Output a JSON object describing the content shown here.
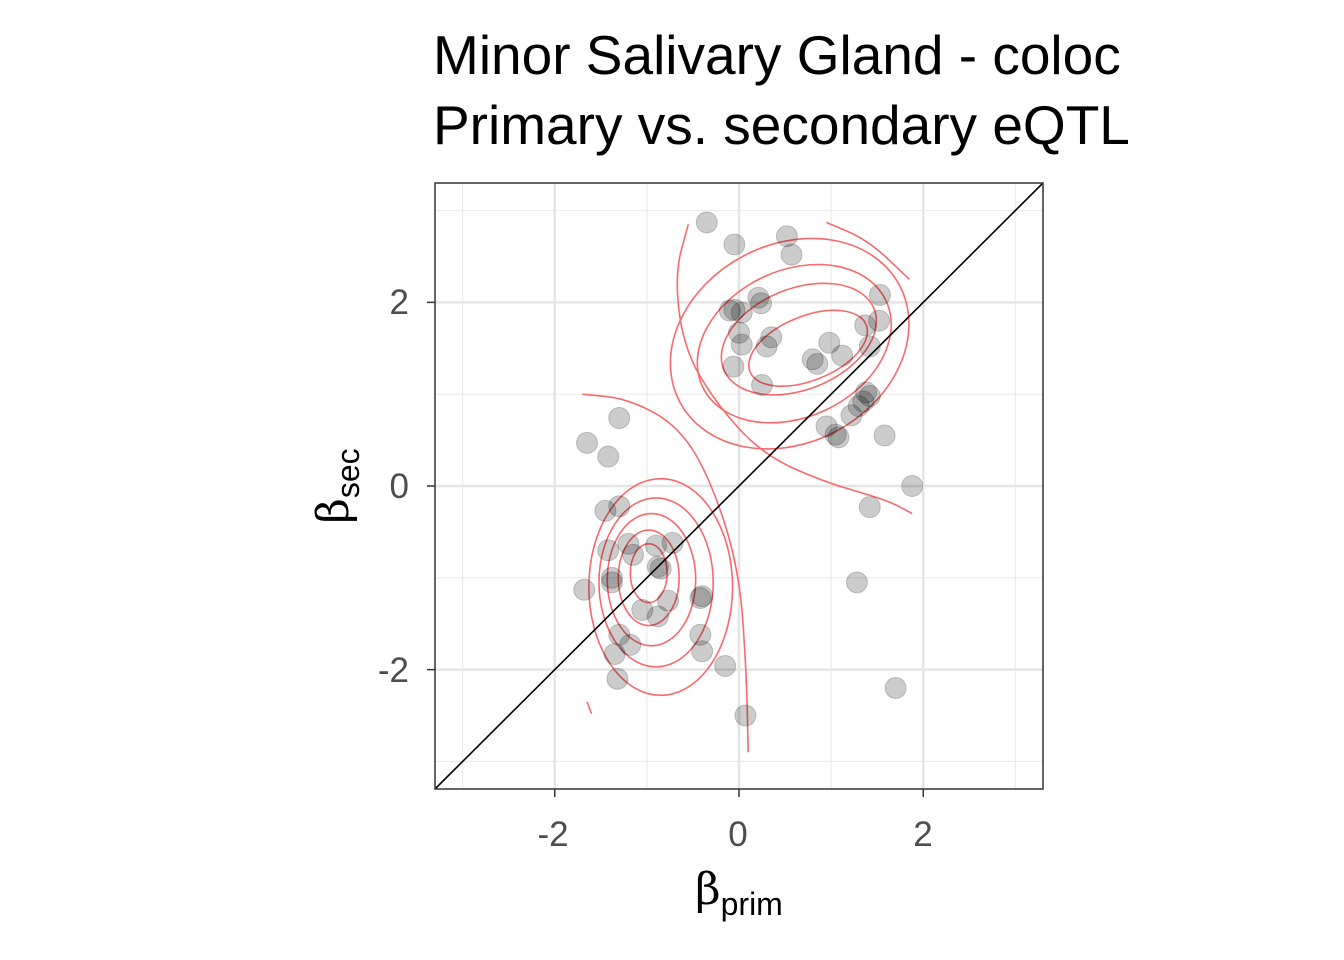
{
  "chart_data": {
    "type": "scatter",
    "title_lines": [
      "Minor Salivary Gland - coloc",
      "Primary vs. secondary eQTL"
    ],
    "xlabel": {
      "symbol": "β",
      "subscript": "prim"
    },
    "ylabel": {
      "symbol": "β",
      "subscript": "sec"
    },
    "xlim": [
      -3.3,
      3.3
    ],
    "ylim": [
      -3.3,
      3.3
    ],
    "x_ticks": [
      -2,
      0,
      2
    ],
    "y_ticks": [
      -2,
      0,
      2
    ],
    "x_tick_labels": [
      "-2",
      "0",
      "2"
    ],
    "y_tick_labels": [
      "-2",
      "0",
      "2"
    ],
    "grid": true,
    "legend": "none",
    "reference_line": {
      "slope": 1,
      "intercept": 0,
      "color": "#000000"
    },
    "point_color": "#000000",
    "point_opacity": 0.2,
    "contour_color": "#f8696b",
    "series": [
      {
        "values": [
          {
            "x": -0.35,
            "y": 2.87
          },
          {
            "x": -0.05,
            "y": 2.63
          },
          {
            "x": 0.52,
            "y": 2.72
          },
          {
            "x": 0.57,
            "y": 2.52
          },
          {
            "x": 0.21,
            "y": 2.05
          },
          {
            "x": 0.24,
            "y": 1.99
          },
          {
            "x": -0.1,
            "y": 1.91
          },
          {
            "x": -0.05,
            "y": 1.92
          },
          {
            "x": 0.03,
            "y": 1.89
          },
          {
            "x": 0.0,
            "y": 1.67
          },
          {
            "x": 0.03,
            "y": 1.54
          },
          {
            "x": 0.35,
            "y": 1.62
          },
          {
            "x": 0.3,
            "y": 1.52
          },
          {
            "x": -0.06,
            "y": 1.3
          },
          {
            "x": 0.25,
            "y": 1.1
          },
          {
            "x": 0.8,
            "y": 1.38
          },
          {
            "x": 0.85,
            "y": 1.33
          },
          {
            "x": 0.98,
            "y": 1.56
          },
          {
            "x": 1.12,
            "y": 1.42
          },
          {
            "x": 1.37,
            "y": 1.75
          },
          {
            "x": 1.52,
            "y": 1.8
          },
          {
            "x": 1.53,
            "y": 2.08
          },
          {
            "x": 1.42,
            "y": 1.52
          },
          {
            "x": 1.38,
            "y": 1.02
          },
          {
            "x": 1.42,
            "y": 0.98
          },
          {
            "x": 1.35,
            "y": 0.92
          },
          {
            "x": 1.3,
            "y": 0.87
          },
          {
            "x": 1.22,
            "y": 0.77
          },
          {
            "x": 0.95,
            "y": 0.65
          },
          {
            "x": 1.05,
            "y": 0.56
          },
          {
            "x": 1.08,
            "y": 0.53
          },
          {
            "x": 1.58,
            "y": 0.55
          },
          {
            "x": 1.88,
            "y": 0.0
          },
          {
            "x": 1.42,
            "y": -0.23
          },
          {
            "x": 1.28,
            "y": -1.05
          },
          {
            "x": 1.7,
            "y": -2.2
          },
          {
            "x": 0.07,
            "y": -2.5
          },
          {
            "x": -1.65,
            "y": 0.47
          },
          {
            "x": -1.3,
            "y": 0.74
          },
          {
            "x": -1.42,
            "y": 0.32
          },
          {
            "x": -1.45,
            "y": -0.27
          },
          {
            "x": -1.3,
            "y": -0.22
          },
          {
            "x": -1.42,
            "y": -0.7
          },
          {
            "x": -1.2,
            "y": -0.63
          },
          {
            "x": -1.15,
            "y": -0.75
          },
          {
            "x": -1.38,
            "y": -1.0
          },
          {
            "x": -1.38,
            "y": -1.05
          },
          {
            "x": -1.68,
            "y": -1.13
          },
          {
            "x": -0.9,
            "y": -0.65
          },
          {
            "x": -0.72,
            "y": -0.62
          },
          {
            "x": -0.88,
            "y": -0.88
          },
          {
            "x": -0.85,
            "y": -0.9
          },
          {
            "x": -1.05,
            "y": -1.35
          },
          {
            "x": -0.88,
            "y": -1.42
          },
          {
            "x": -0.77,
            "y": -1.25
          },
          {
            "x": -0.4,
            "y": -1.2
          },
          {
            "x": -0.42,
            "y": -1.22
          },
          {
            "x": -1.3,
            "y": -1.62
          },
          {
            "x": -1.18,
            "y": -1.73
          },
          {
            "x": -1.35,
            "y": -1.83
          },
          {
            "x": -1.32,
            "y": -2.1
          },
          {
            "x": -0.42,
            "y": -1.62
          },
          {
            "x": -0.4,
            "y": -1.8
          },
          {
            "x": -0.15,
            "y": -1.96
          }
        ]
      }
    ],
    "density_contours": [
      {
        "cluster": "upper-right",
        "center": [
          0.75,
          1.5
        ],
        "rings": [
          {
            "cx": 0.75,
            "cy": 1.5,
            "rx": 0.68,
            "ry": 0.35,
            "rotate_deg": -22
          },
          {
            "cx": 0.65,
            "cy": 1.6,
            "rx": 0.88,
            "ry": 0.55,
            "rotate_deg": -22
          },
          {
            "cx": 0.6,
            "cy": 1.55,
            "rx": 1.1,
            "ry": 0.8,
            "rotate_deg": -25
          },
          {
            "cx": 0.55,
            "cy": 1.55,
            "rx": 1.35,
            "ry": 1.08,
            "rotate_deg": -28
          }
        ]
      },
      {
        "cluster": "lower-left",
        "center": [
          -0.98,
          -0.98
        ],
        "rings": [
          {
            "cx": -0.98,
            "cy": -0.95,
            "rx": 0.2,
            "ry": 0.32,
            "rotate_deg": 0
          },
          {
            "cx": -0.98,
            "cy": -1.0,
            "rx": 0.33,
            "ry": 0.52,
            "rotate_deg": 0
          },
          {
            "cx": -0.95,
            "cy": -1.02,
            "rx": 0.48,
            "ry": 0.72,
            "rotate_deg": 0
          },
          {
            "cx": -0.9,
            "cy": -1.05,
            "rx": 0.62,
            "ry": 0.92,
            "rotate_deg": 0
          },
          {
            "cx": -0.85,
            "cy": -1.1,
            "rx": 0.78,
            "ry": 1.18,
            "rotate_deg": 0
          }
        ]
      },
      {
        "cluster": "outer",
        "open_paths": [
          [
            [
              -1.7,
              1.0
            ],
            [
              -1.2,
              0.95
            ],
            [
              -0.65,
              0.65
            ],
            [
              -0.3,
              0.05
            ],
            [
              0.0,
              -0.9
            ],
            [
              0.08,
              -2.0
            ],
            [
              0.1,
              -2.9
            ]
          ],
          [
            [
              -0.55,
              2.85
            ],
            [
              -0.7,
              2.3
            ],
            [
              -0.6,
              1.5
            ],
            [
              -0.25,
              0.9
            ],
            [
              0.25,
              0.35
            ],
            [
              0.9,
              0.05
            ],
            [
              1.6,
              -0.15
            ],
            [
              1.88,
              -0.3
            ]
          ],
          [
            [
              0.95,
              2.87
            ],
            [
              1.4,
              2.68
            ],
            [
              1.85,
              2.25
            ]
          ],
          [
            [
              -1.65,
              -2.35
            ],
            [
              -1.6,
              -2.48
            ]
          ]
        ]
      }
    ]
  }
}
